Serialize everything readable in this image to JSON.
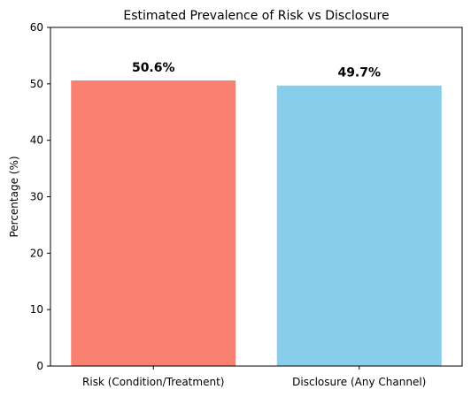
{
  "chart_data": {
    "type": "bar",
    "title": "Estimated Prevalence of Risk vs Disclosure",
    "xlabel": "",
    "ylabel": "Percentage (%)",
    "ylim": [
      0,
      60
    ],
    "yticks": [
      0,
      10,
      20,
      30,
      40,
      50,
      60
    ],
    "grid": false,
    "categories": [
      "Risk (Condition/Treatment)",
      "Disclosure (Any Channel)"
    ],
    "values": [
      50.6,
      49.7
    ],
    "data_labels": [
      "50.6%",
      "49.7%"
    ],
    "colors": [
      "#fa8072",
      "#87ceeb"
    ]
  }
}
